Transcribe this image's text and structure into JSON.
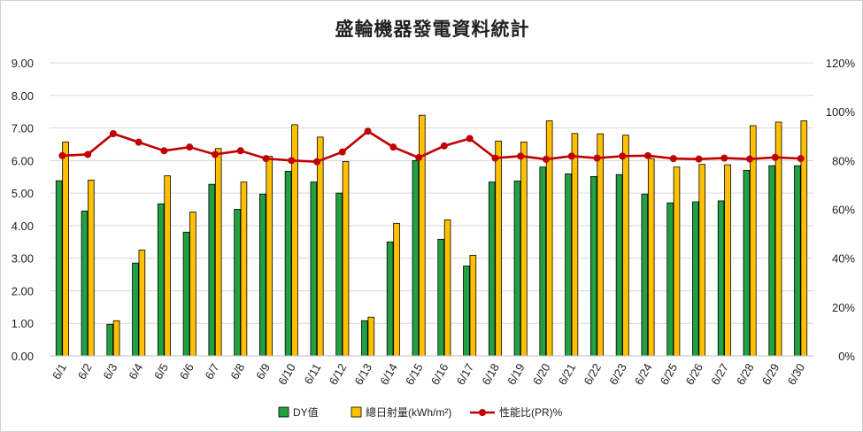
{
  "chart_data": {
    "type": "bar",
    "title": "盛輪機器發電資料統計",
    "categories": [
      "6/1",
      "6/2",
      "6/3",
      "6/4",
      "6/5",
      "6/6",
      "6/7",
      "6/8",
      "6/9",
      "6/10",
      "6/11",
      "6/12",
      "6/13",
      "6/14",
      "6/15",
      "6/16",
      "6/17",
      "6/18",
      "6/19",
      "6/20",
      "6/21",
      "6/22",
      "6/23",
      "6/24",
      "6/25",
      "6/26",
      "6/27",
      "6/28",
      "6/29",
      "6/30"
    ],
    "y_left": {
      "min": 0,
      "max": 9,
      "step": 1,
      "tick_labels": [
        "0.00",
        "1.00",
        "2.00",
        "3.00",
        "4.00",
        "5.00",
        "6.00",
        "7.00",
        "8.00",
        "9.00"
      ]
    },
    "y_right": {
      "min": 0,
      "max": 120,
      "step": 20,
      "tick_labels": [
        "0%",
        "20%",
        "40%",
        "60%",
        "80%",
        "100%",
        "120%"
      ]
    },
    "grid": "horizontal",
    "legend_position": "bottom",
    "series": [
      {
        "name": "DY值",
        "type": "bar",
        "axis": "left",
        "color": "#22a042",
        "values": [
          5.38,
          4.45,
          0.97,
          2.85,
          4.67,
          3.8,
          5.27,
          4.5,
          4.97,
          5.67,
          5.34,
          5.0,
          1.08,
          3.5,
          6.0,
          3.58,
          2.76,
          5.34,
          5.37,
          5.8,
          5.59,
          5.51,
          5.57,
          4.97,
          4.7,
          4.73,
          4.76,
          5.7,
          5.84,
          5.84
        ]
      },
      {
        "name": "總日射量(kWh/m²)",
        "type": "bar",
        "axis": "left",
        "color": "#ffc000",
        "values": [
          6.57,
          5.4,
          1.08,
          3.25,
          5.53,
          4.42,
          6.37,
          5.34,
          6.13,
          7.1,
          6.72,
          5.97,
          1.19,
          4.07,
          7.39,
          4.18,
          3.09,
          6.6,
          6.57,
          7.22,
          6.83,
          6.82,
          6.78,
          6.06,
          5.8,
          5.88,
          5.87,
          7.07,
          7.18,
          7.22
        ]
      },
      {
        "name": "性能比(PR)%",
        "type": "line",
        "axis": "right",
        "color": "#c00000",
        "values": [
          82,
          82.5,
          91,
          87.5,
          84,
          85.5,
          82.5,
          84,
          80.8,
          80,
          79.5,
          83.5,
          92,
          85.5,
          81.2,
          86,
          89,
          81,
          81.8,
          80.5,
          81.8,
          81,
          81.8,
          82,
          80.8,
          80.6,
          81,
          80.6,
          81.3,
          80.8
        ]
      }
    ]
  }
}
